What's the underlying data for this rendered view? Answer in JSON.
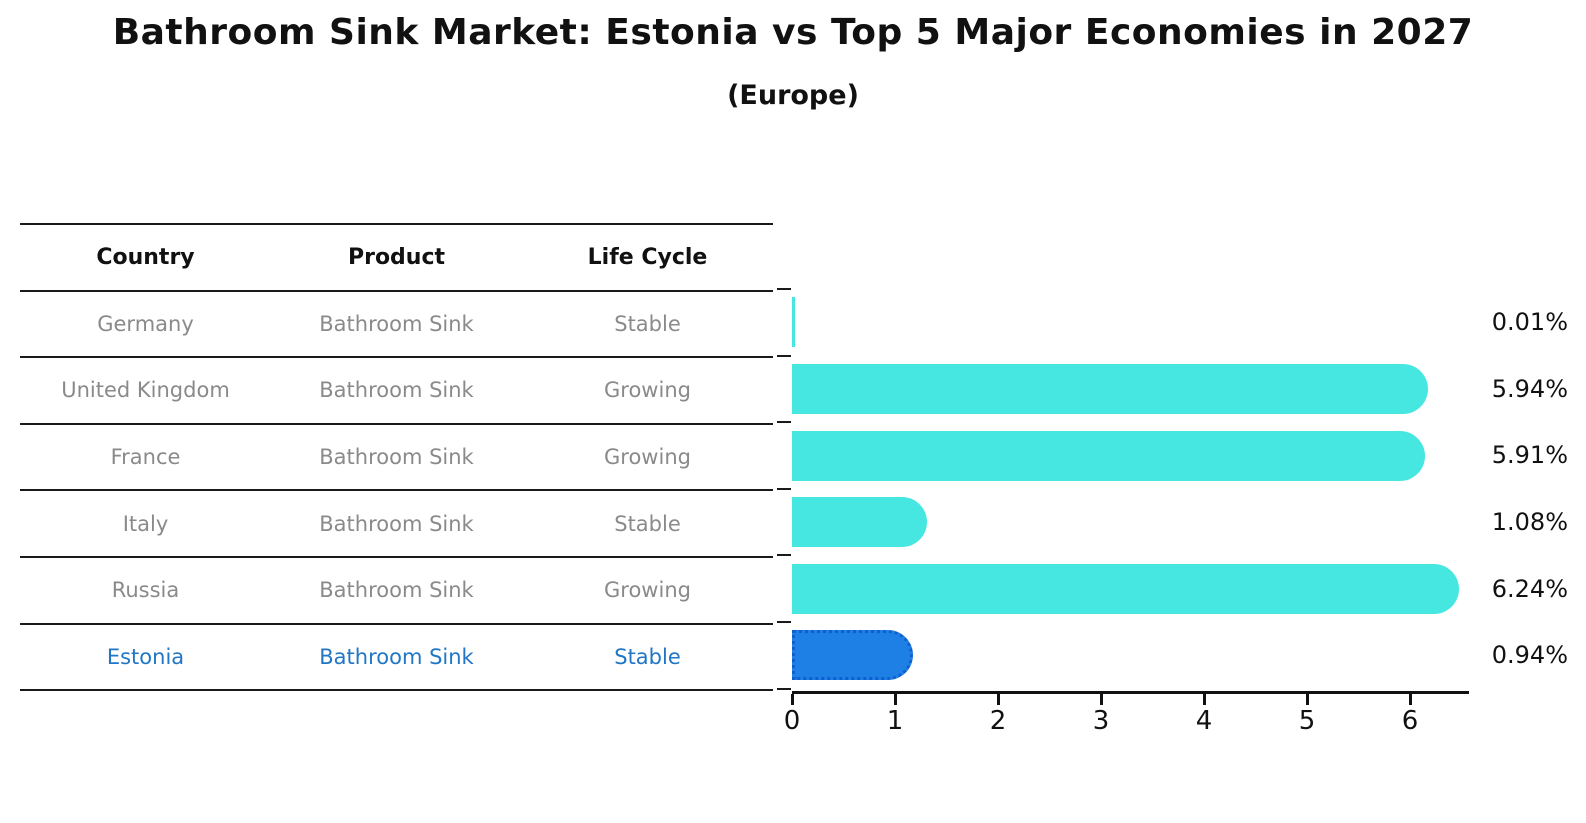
{
  "title": "Bathroom Sink Market: Estonia vs Top 5 Major Economies in 2027",
  "subtitle": "(Europe)",
  "table": {
    "headers": [
      "Country",
      "Product",
      "Life Cycle"
    ],
    "rows": [
      {
        "country": "Germany",
        "product": "Bathroom Sink",
        "life_cycle": "Stable",
        "highlight": false
      },
      {
        "country": "United Kingdom",
        "product": "Bathroom Sink",
        "life_cycle": "Growing",
        "highlight": false
      },
      {
        "country": "France",
        "product": "Bathroom Sink",
        "life_cycle": "Growing",
        "highlight": false
      },
      {
        "country": "Italy",
        "product": "Bathroom Sink",
        "life_cycle": "Stable",
        "highlight": false
      },
      {
        "country": "Russia",
        "product": "Bathroom Sink",
        "life_cycle": "Growing",
        "highlight": false
      },
      {
        "country": "Estonia",
        "product": "Bathroom Sink",
        "life_cycle": "Stable",
        "highlight": true
      }
    ]
  },
  "chart_data": {
    "type": "bar",
    "orientation": "horizontal",
    "title": "Bathroom Sink Market: Estonia vs Top 5 Major Economies in 2027 (Europe)",
    "categories": [
      "Germany",
      "United Kingdom",
      "France",
      "Italy",
      "Russia",
      "Estonia"
    ],
    "values": [
      0.01,
      5.94,
      5.91,
      1.08,
      6.24,
      0.94
    ],
    "value_labels": [
      "0.01%",
      "5.94%",
      "5.91%",
      "1.08%",
      "6.24%",
      "0.94%"
    ],
    "unit": "%",
    "highlight_index": 5,
    "xlim": [
      0,
      6.55
    ],
    "x_ticks": [
      "0",
      "1",
      "2",
      "3",
      "4",
      "5",
      "6"
    ],
    "grid": false,
    "legend": "none",
    "bar_color": "#46E6E1",
    "highlight_bar_color": "#1E80E5",
    "highlight_border_color": "#0F5FD0",
    "highlight_text_color": "#2176C5",
    "row_text_color": "#8a8a8a",
    "axis_color": "#111111"
  }
}
